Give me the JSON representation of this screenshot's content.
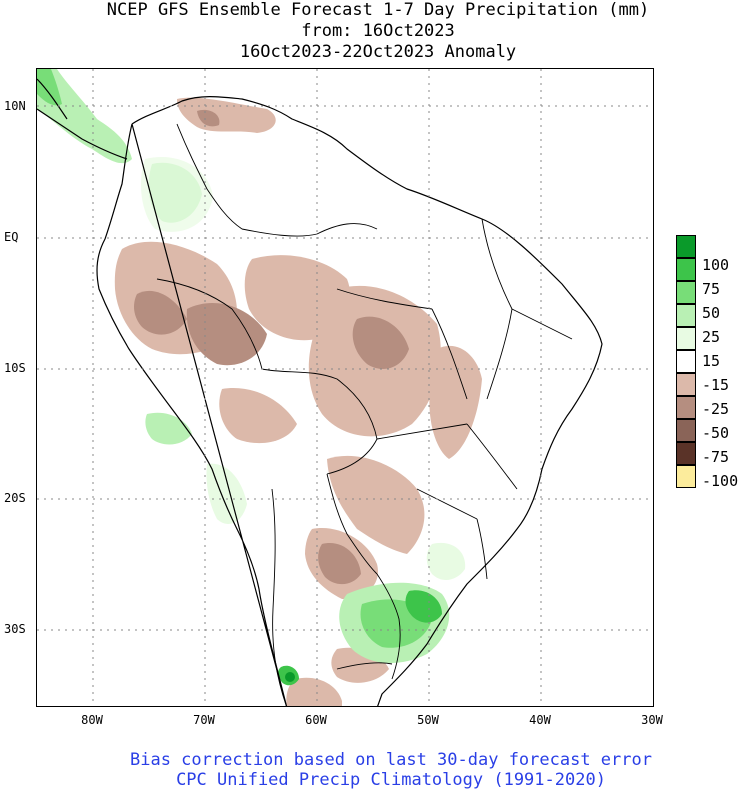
{
  "header": {
    "title_line1": "NCEP GFS Ensemble Forecast 1-7 Day Precipitation (mm)",
    "title_line2": "from: 16Oct2023",
    "title_line3": "16Oct2023-22Oct2023 Anomaly"
  },
  "axes": {
    "lat_labels": [
      "10N",
      "EQ",
      "10S",
      "20S",
      "30S"
    ],
    "lon_labels": [
      "80W",
      "70W",
      "60W",
      "50W",
      "40W",
      "30W"
    ]
  },
  "legend": {
    "items": [
      {
        "label": "100",
        "color": "#0a9a2a"
      },
      {
        "label": "75",
        "color": "#3dc44a"
      },
      {
        "label": "50",
        "color": "#78dd78"
      },
      {
        "label": "25",
        "color": "#b9f0b4"
      },
      {
        "label": "15",
        "color": "#e8fbe3"
      },
      {
        "label": "-15",
        "color": "#ffffff"
      },
      {
        "label": "-25",
        "color": "#dcb9aa"
      },
      {
        "label": "-50",
        "color": "#b58e80"
      },
      {
        "label": "-75",
        "color": "#8a6458"
      },
      {
        "label": "-100",
        "color": "#5a3328"
      },
      {
        "label": "",
        "color": "#fcec9c"
      }
    ]
  },
  "footer": {
    "line1": "Bias correction based on last 30-day forecast error",
    "line2": "CPC Unified Precip Climatology (1991-2020)"
  },
  "colors": {
    "dry_light": "#dcb9aa",
    "dry_medium": "#b58e80",
    "wet_light": "#e8fbe3",
    "wet_medium": "#b9f0b4",
    "wet_strong": "#78dd78",
    "wet_heavy": "#3dc44a",
    "wet_extreme": "#0a9a2a",
    "footer_text": "#2a3fe6"
  }
}
